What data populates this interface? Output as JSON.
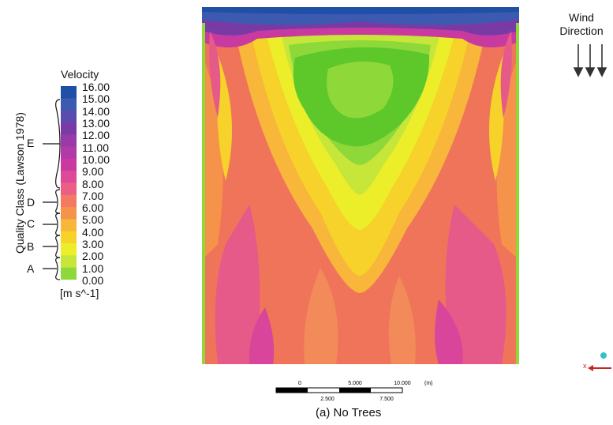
{
  "legend": {
    "title": "Velocity",
    "units": "[m s^-1]",
    "tick_labels": [
      "16.00",
      "15.00",
      "14.00",
      "13.00",
      "12.00",
      "11.00",
      "10.00",
      "9.00",
      "8.00",
      "7.00",
      "6.00",
      "5.00",
      "4.00",
      "3.00",
      "2.00",
      "1.00",
      "0.00"
    ],
    "side_label": "Quality Class (Lawson 1978)",
    "classes": [
      "E",
      "D",
      "C",
      "B",
      "A"
    ],
    "colors": [
      "#1f4fa6",
      "#3b5ab0",
      "#5a4bb0",
      "#7a3aa6",
      "#9a3aa8",
      "#b23aa6",
      "#c83aa0",
      "#de4a98",
      "#ec5e86",
      "#f27a62",
      "#f6934a",
      "#f8b63a",
      "#f6d22a",
      "#ecee2a",
      "#c7e63a",
      "#8fd83a",
      "#5ec82a"
    ]
  },
  "wind": {
    "line1": "Wind",
    "line2": "Direction"
  },
  "scale": {
    "top_labels": [
      "0",
      "5.000",
      "10.000",
      "(m)"
    ],
    "bottom_labels": [
      "2.500",
      "7.500"
    ]
  },
  "caption": "(a) No Trees",
  "axis": {
    "x_label": "x"
  }
}
